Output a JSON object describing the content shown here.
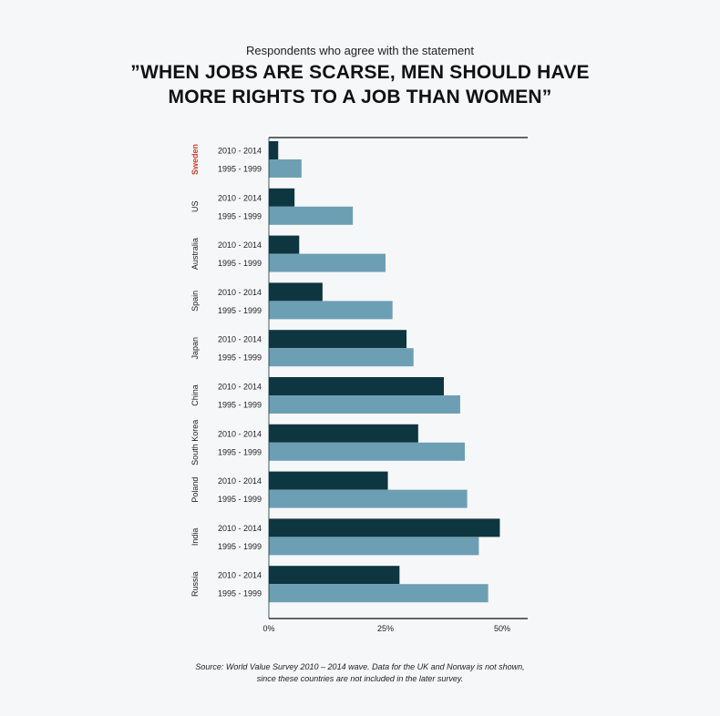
{
  "subtitle": "Respondents who agree with the statement",
  "title_lines": [
    "”WHEN JOBS ARE SCARSE, MEN SHOULD HAVE",
    "MORE RIGHTS TO A JOB THAN WOMEN”"
  ],
  "source_lines": [
    "Source: World Value Survey 2010 – 2014 wave. Data for the UK and Norway is not shown,",
    "since these countries are not included in the later survey."
  ],
  "colors": {
    "series_recent": "#0e3640",
    "series_old": "#6d9fb4",
    "highlight_country": "#d13a2a",
    "axis": "#111111"
  },
  "chart_data": {
    "type": "bar",
    "orientation": "horizontal",
    "categories": [
      "Sweden",
      "US",
      "Australia",
      "Spain",
      "Japan",
      "China",
      "South Korea",
      "Poland",
      "India",
      "Russia"
    ],
    "highlight": "Sweden",
    "series": [
      {
        "name": "2010 - 2014",
        "values": [
          2,
          5.5,
          6.5,
          11.5,
          29.5,
          37.5,
          32,
          25.5,
          49.5,
          28
        ]
      },
      {
        "name": "1995 - 1999",
        "values": [
          7,
          18,
          25,
          26.5,
          31,
          41,
          42,
          42.5,
          45,
          47
        ]
      }
    ],
    "xlim": [
      0,
      55
    ],
    "x_ticks": [
      0,
      25,
      50
    ],
    "x_tick_labels": [
      "0%",
      "25%",
      "50%"
    ],
    "xlabel": "",
    "ylabel": "",
    "grid": false
  }
}
